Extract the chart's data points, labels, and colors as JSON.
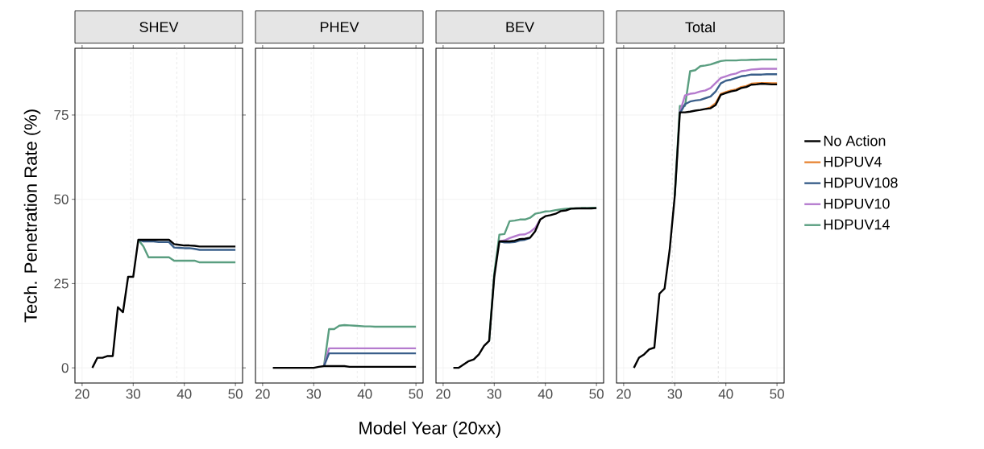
{
  "chart_data": [
    {
      "type": "line",
      "title": "SHEV",
      "ylabel": "Tech. Penetration Rate (%)",
      "x": [
        22,
        23,
        24,
        25,
        26,
        27,
        28,
        29,
        30,
        31,
        32,
        33,
        34,
        35,
        36,
        37,
        38,
        39,
        40,
        41,
        42,
        43,
        44,
        45,
        46,
        47,
        48,
        49,
        50
      ],
      "xlim": [
        18.6,
        51.4
      ],
      "ylim": [
        -4.5,
        94.8
      ],
      "xticks": [
        20,
        30,
        40,
        50
      ],
      "yticks": [
        0,
        25,
        50,
        75
      ],
      "grid": true,
      "legend": false,
      "ref_lines": [
        {
          "axis": "x",
          "value": 29.5,
          "line_style": "dashed",
          "color": "#c8c8c8"
        },
        {
          "axis": "x",
          "value": 38.5,
          "line_style": "dashed",
          "color": "#c8c8c8"
        }
      ],
      "series": [
        {
          "color": "#000000",
          "values": [
            0,
            3,
            3,
            3.5,
            3.5,
            18,
            16.5,
            27,
            27,
            38,
            38,
            38,
            38,
            38,
            38,
            38,
            36.7,
            36.5,
            36.3,
            36.3,
            36.2,
            36,
            36,
            36,
            36,
            36,
            36,
            36,
            36
          ]
        },
        {
          "color": "#3a5f8a",
          "values": [
            null,
            null,
            null,
            null,
            null,
            null,
            null,
            null,
            null,
            38,
            37.5,
            37.5,
            37.5,
            37.3,
            37.3,
            37.3,
            35.7,
            35.6,
            35.5,
            35.5,
            35.3,
            35,
            35,
            35,
            35,
            35,
            35,
            35,
            35
          ]
        },
        {
          "color": "#5a9e80",
          "values": [
            null,
            null,
            null,
            null,
            null,
            null,
            null,
            null,
            null,
            38,
            36,
            32.8,
            32.8,
            32.8,
            32.8,
            32.8,
            31.8,
            31.8,
            31.8,
            31.8,
            31.8,
            31.3,
            31.3,
            31.3,
            31.3,
            31.3,
            31.3,
            31.3,
            31.3
          ]
        }
      ]
    },
    {
      "type": "line",
      "title": "PHEV",
      "xlabel": "Model Year (20xx)",
      "x": [
        22,
        23,
        24,
        25,
        26,
        27,
        28,
        29,
        30,
        31,
        32,
        33,
        34,
        35,
        36,
        37,
        38,
        39,
        40,
        41,
        42,
        43,
        44,
        45,
        46,
        47,
        48,
        49,
        50
      ],
      "xlim": [
        18.6,
        51.4
      ],
      "ylim": [
        -4.5,
        94.8
      ],
      "xticks": [
        20,
        30,
        40,
        50
      ],
      "yticks": [
        0,
        25,
        50,
        75
      ],
      "grid": true,
      "legend": false,
      "tick_labels": "x",
      "ref_lines": [
        {
          "axis": "x",
          "value": 29.5,
          "line_style": "dashed",
          "color": "#c8c8c8"
        },
        {
          "axis": "x",
          "value": 38.5,
          "line_style": "dashed",
          "color": "#c8c8c8"
        }
      ],
      "series": [
        {
          "color": "#000000",
          "values": [
            0,
            0,
            0,
            0,
            0,
            0,
            0,
            0,
            0,
            0.3,
            0.5,
            0.5,
            0.5,
            0.5,
            0.5,
            0.3,
            0.3,
            0.3,
            0.3,
            0.3,
            0.3,
            0.3,
            0.3,
            0.3,
            0.3,
            0.3,
            0.3,
            0.3,
            0.3
          ]
        },
        {
          "color": "#3a5f8a",
          "values": [
            null,
            null,
            null,
            null,
            null,
            null,
            null,
            null,
            null,
            null,
            0.5,
            4.3,
            4.3,
            4.3,
            4.3,
            4.3,
            4.3,
            4.3,
            4.3,
            4.3,
            4.3,
            4.3,
            4.3,
            4.3,
            4.3,
            4.3,
            4.3,
            4.3,
            4.3
          ]
        },
        {
          "color": "#b57bce",
          "values": [
            null,
            null,
            null,
            null,
            null,
            null,
            null,
            null,
            null,
            null,
            0.5,
            5.8,
            5.8,
            5.8,
            5.8,
            5.8,
            5.8,
            5.8,
            5.8,
            5.8,
            5.8,
            5.8,
            5.8,
            5.8,
            5.8,
            5.8,
            5.8,
            5.8,
            5.8
          ]
        },
        {
          "color": "#5a9e80",
          "values": [
            null,
            null,
            null,
            null,
            null,
            null,
            null,
            null,
            null,
            null,
            0.5,
            11.5,
            11.5,
            12.5,
            12.7,
            12.6,
            12.5,
            12.4,
            12.3,
            12.3,
            12.2,
            12.2,
            12.2,
            12.2,
            12.2,
            12.2,
            12.2,
            12.2,
            12.2
          ]
        }
      ]
    },
    {
      "type": "line",
      "title": "BEV",
      "x": [
        22,
        23,
        24,
        25,
        26,
        27,
        28,
        29,
        30,
        31,
        32,
        33,
        34,
        35,
        36,
        37,
        38,
        39,
        40,
        41,
        42,
        43,
        44,
        45,
        46,
        47,
        48,
        49,
        50
      ],
      "xlim": [
        18.6,
        51.4
      ],
      "ylim": [
        -4.5,
        94.8
      ],
      "xticks": [
        20,
        30,
        40,
        50
      ],
      "yticks": [
        0,
        25,
        50,
        75
      ],
      "grid": true,
      "legend": false,
      "tick_labels": "x",
      "ref_lines": [
        {
          "axis": "x",
          "value": 29.5,
          "line_style": "dashed",
          "color": "#c8c8c8"
        },
        {
          "axis": "x",
          "value": 38.5,
          "line_style": "dashed",
          "color": "#c8c8c8"
        }
      ],
      "series": [
        {
          "color": "#000000",
          "values": [
            0,
            0,
            1,
            2,
            2.5,
            4,
            6.5,
            8,
            27,
            37.5,
            37.5,
            37.5,
            37.7,
            38.2,
            38.3,
            38.6,
            40.5,
            44,
            45,
            45.3,
            45.7,
            46.5,
            46.7,
            47.2,
            47.3,
            47.3,
            47.3,
            47.3,
            47.4
          ]
        },
        {
          "color": "#3a5f8a",
          "values": [
            null,
            null,
            null,
            null,
            null,
            null,
            null,
            null,
            null,
            37.5,
            37.2,
            37.2,
            37.3,
            37.8,
            38,
            38.5,
            null,
            null,
            null,
            null,
            null,
            null,
            null,
            null,
            null,
            null,
            null,
            null,
            null
          ]
        },
        {
          "color": "#b57bce",
          "values": [
            null,
            null,
            null,
            null,
            null,
            null,
            null,
            null,
            null,
            37.5,
            37.8,
            38.5,
            39,
            39.5,
            39.6,
            40.3,
            41.5,
            44,
            null,
            null,
            null,
            null,
            null,
            null,
            null,
            null,
            null,
            null,
            null
          ]
        },
        {
          "color": "#5a9e80",
          "values": [
            null,
            null,
            null,
            null,
            null,
            null,
            null,
            8,
            28,
            39.5,
            39.7,
            43.5,
            43.7,
            44,
            44,
            44.5,
            45.7,
            46,
            46.4,
            46.5,
            46.8,
            47,
            47.2,
            47.3,
            47.3,
            47.4,
            47.4,
            47.5,
            47.5
          ]
        }
      ]
    },
    {
      "type": "line",
      "title": "Total",
      "x": [
        22,
        23,
        24,
        25,
        26,
        27,
        28,
        29,
        30,
        31,
        32,
        33,
        34,
        35,
        36,
        37,
        38,
        39,
        40,
        41,
        42,
        43,
        44,
        45,
        46,
        47,
        48,
        49,
        50
      ],
      "xlim": [
        18.6,
        51.4
      ],
      "ylim": [
        -4.5,
        94.8
      ],
      "xticks": [
        20,
        30,
        40,
        50
      ],
      "yticks": [
        0,
        25,
        50,
        75
      ],
      "grid": true,
      "legend": "right",
      "tick_labels": "x",
      "ref_lines": [
        {
          "axis": "x",
          "value": 29.5,
          "line_style": "dashed",
          "color": "#c8c8c8"
        },
        {
          "axis": "x",
          "value": 38.5,
          "line_style": "dashed",
          "color": "#c8c8c8"
        }
      ],
      "series": [
        {
          "name": "No Action",
          "color": "#000000",
          "values": [
            0,
            3,
            4,
            5.5,
            6,
            22,
            23.5,
            35,
            51,
            75.8,
            75.8,
            76,
            76.3,
            76.5,
            76.8,
            77,
            78,
            81,
            81.5,
            82,
            82.3,
            83,
            83.3,
            84,
            84.1,
            84.3,
            84.2,
            84.1,
            84.1
          ]
        },
        {
          "name": "HDPUV4",
          "color": "#e8883a",
          "values": [
            null,
            null,
            null,
            null,
            null,
            null,
            null,
            null,
            null,
            null,
            null,
            null,
            null,
            null,
            76.8,
            77.3,
            78.5,
            81.3,
            81.8,
            82.3,
            82.6,
            83.3,
            83.6,
            84.3,
            84.4,
            84.5,
            84.5,
            84.4,
            84.4
          ]
        },
        {
          "name": "HDPUV108",
          "color": "#3a5f8a",
          "values": [
            null,
            null,
            null,
            null,
            null,
            null,
            null,
            null,
            null,
            75.5,
            78.2,
            79,
            79.3,
            79.5,
            80,
            80.5,
            82,
            84.4,
            85.2,
            85.5,
            86,
            86.5,
            86.7,
            87,
            87,
            87,
            87.1,
            87.1,
            87.1
          ]
        },
        {
          "name": "HDPUV10",
          "color": "#b57bce",
          "values": [
            null,
            null,
            null,
            null,
            null,
            null,
            null,
            null,
            null,
            75.8,
            80.8,
            81.3,
            81.5,
            82,
            82.3,
            83,
            84.5,
            86,
            86.5,
            87,
            87.3,
            88,
            88.2,
            88.5,
            88.6,
            88.7,
            88.7,
            88.7,
            88.7
          ]
        },
        {
          "name": "HDPUV14",
          "color": "#5a9e80",
          "values": [
            null,
            null,
            null,
            null,
            null,
            null,
            null,
            null,
            51,
            77.7,
            77.7,
            88,
            88.3,
            89.5,
            89.7,
            90,
            90.5,
            91,
            91.2,
            91.2,
            91.2,
            91.3,
            91.3,
            91.4,
            91.4,
            91.5,
            91.5,
            91.5,
            91.5
          ]
        }
      ]
    }
  ]
}
